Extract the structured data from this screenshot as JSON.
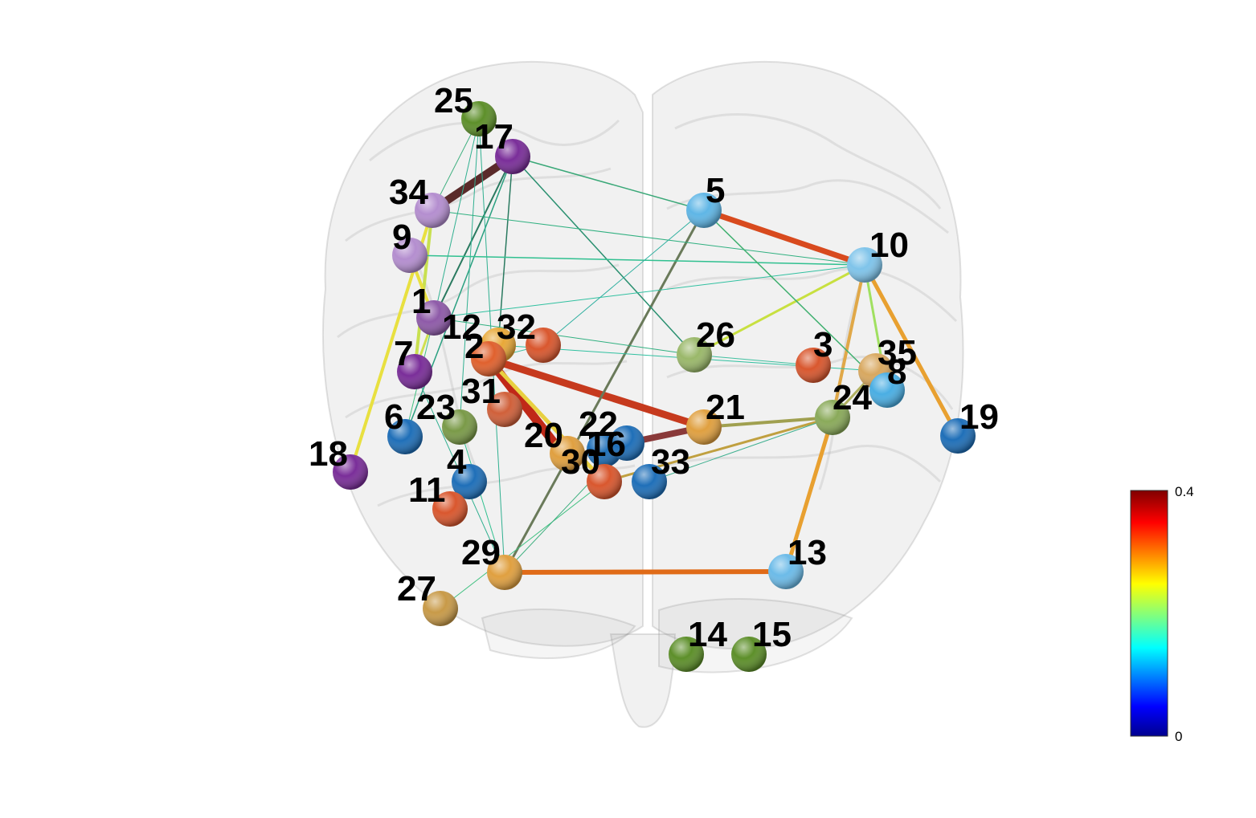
{
  "colorbar": {
    "max_label": "0.4",
    "min_label": "0"
  },
  "nodes": [
    {
      "id": "1",
      "color": "#8e5aa8"
    },
    {
      "id": "2",
      "color": "#e0612e"
    },
    {
      "id": "3",
      "color": "#d9572e"
    },
    {
      "id": "4",
      "color": "#1f6fb8"
    },
    {
      "id": "5",
      "color": "#5fb6e6"
    },
    {
      "id": "6",
      "color": "#1f6fb8"
    },
    {
      "id": "7",
      "color": "#7a2e99"
    },
    {
      "id": "8",
      "color": "#4aaee3"
    },
    {
      "id": "9",
      "color": "#b48ecf"
    },
    {
      "id": "10",
      "color": "#7fc4ea"
    },
    {
      "id": "11",
      "color": "#d9572e"
    },
    {
      "id": "12",
      "color": "#e8a838"
    },
    {
      "id": "13",
      "color": "#6cbbe8"
    },
    {
      "id": "14",
      "color": "#5d8f2a"
    },
    {
      "id": "15",
      "color": "#5d8f2a"
    },
    {
      "id": "16",
      "color": "#1f6fb8"
    },
    {
      "id": "17",
      "color": "#7a2e99"
    },
    {
      "id": "18",
      "color": "#7a2e99"
    },
    {
      "id": "19",
      "color": "#1f6fb8"
    },
    {
      "id": "20",
      "color": "#e0a040"
    },
    {
      "id": "21",
      "color": "#e0a040"
    },
    {
      "id": "22",
      "color": "#1f6fb8"
    },
    {
      "id": "23",
      "color": "#7a9a48"
    },
    {
      "id": "24",
      "color": "#8aaa5a"
    },
    {
      "id": "25",
      "color": "#5d8f2a"
    },
    {
      "id": "26",
      "color": "#9ab86a"
    },
    {
      "id": "27",
      "color": "#c89a48"
    },
    {
      "id": "29",
      "color": "#e0a040"
    },
    {
      "id": "30",
      "color": "#d9572e"
    },
    {
      "id": "31",
      "color": "#d0603a"
    },
    {
      "id": "32",
      "color": "#d9572e"
    },
    {
      "id": "33",
      "color": "#1f6fb8"
    },
    {
      "id": "34",
      "color": "#b48ecf"
    },
    {
      "id": "35",
      "color": "#d8a860"
    }
  ]
}
